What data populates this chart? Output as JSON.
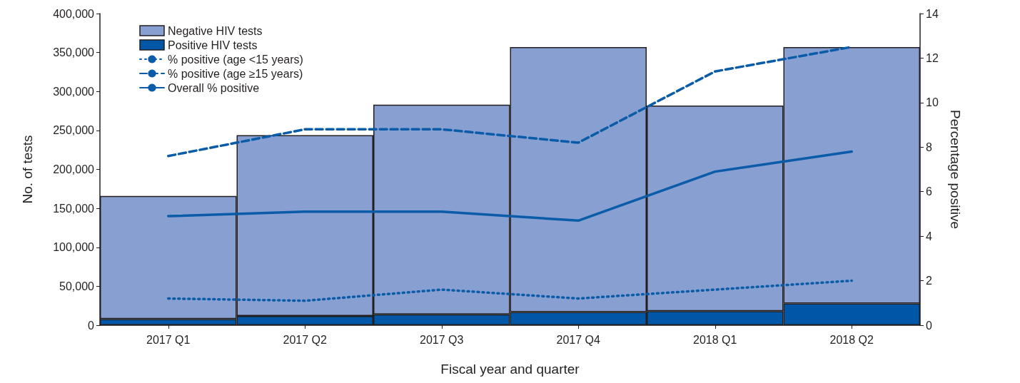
{
  "chart_data": {
    "type": "bar",
    "stacked": true,
    "xlabel": "Fiscal year and quarter",
    "ylabel": "No. of tests",
    "y2label": "Percentage positive",
    "categories": [
      "2017 Q1",
      "2017 Q2",
      "2017 Q3",
      "2017 Q4",
      "2018 Q1",
      "2018 Q2"
    ],
    "series": [
      {
        "name": "Positive HIV tests",
        "color": "#0057a8",
        "values": [
          8000,
          12000,
          14000,
          17000,
          18000,
          28000
        ]
      },
      {
        "name": "Negative HIV tests",
        "color": "#879fd1",
        "values": [
          158000,
          232000,
          269000,
          340000,
          264000,
          329000
        ]
      },
      {
        "name": "% positive (age <15 years)",
        "type": "line",
        "axis": "y2",
        "line_style": "dotted",
        "color": "#0a5ba8",
        "values": [
          1.2,
          1.1,
          1.6,
          1.2,
          1.6,
          2.0
        ]
      },
      {
        "name": "% positive (age ≥15 years)",
        "type": "line",
        "axis": "y2",
        "line_style": "dashed",
        "color": "#0a5ba8",
        "values": [
          7.6,
          8.8,
          8.8,
          8.2,
          11.4,
          12.5
        ]
      },
      {
        "name": "Overall % positive",
        "type": "line",
        "axis": "y2",
        "line_style": "solid",
        "color": "#0a5ba8",
        "values": [
          4.9,
          5.1,
          5.1,
          4.7,
          6.9,
          7.8
        ]
      }
    ],
    "ylim": [
      0,
      400000
    ],
    "yticks": [
      0,
      {
        "value": 50000,
        "label": "50,000"
      },
      {
        "value": 100000,
        "label": "100,000"
      },
      {
        "value": 150000,
        "label": "150,000"
      },
      {
        "value": 200000,
        "label": "200,000"
      },
      {
        "value": 250000,
        "label": "250,000"
      },
      {
        "value": 300000,
        "label": "300,000"
      },
      {
        "value": 350000,
        "label": "350,000"
      },
      {
        "value": 400000,
        "label": "400,000"
      }
    ],
    "y2lim": [
      0,
      14
    ],
    "y2ticks": [
      0,
      2,
      4,
      6,
      8,
      10,
      12,
      14
    ],
    "legend": "top left",
    "marker": "none",
    "grid": false
  }
}
